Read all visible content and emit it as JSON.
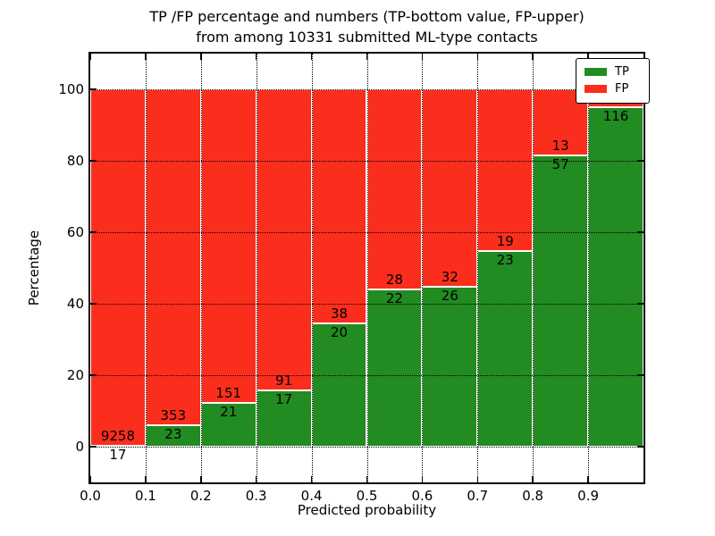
{
  "title": {
    "line1": "TP /FP percentage and numbers (TP-bottom value, FP-upper)",
    "line2": "from among 10331 submitted ML-type contacts"
  },
  "x_axis": {
    "label": "Predicted probability",
    "ticks": [
      "0.0",
      "0.1",
      "0.2",
      "0.3",
      "0.4",
      "0.5",
      "0.6",
      "0.7",
      "0.8",
      "0.9"
    ]
  },
  "y_axis": {
    "label": "Percentage",
    "ticks": [
      "0",
      "20",
      "40",
      "60",
      "80",
      "100"
    ]
  },
  "legend": {
    "items": [
      {
        "label": "TP",
        "color": "#228b22"
      },
      {
        "label": "FP",
        "color": "#fb2e1d"
      }
    ]
  },
  "colors": {
    "tp": "#228b22",
    "fp": "#fb2e1d",
    "bar_edge": "#ffffff",
    "grid": "#000000"
  },
  "chart_data": {
    "type": "bar",
    "stacked": true,
    "title": "TP /FP percentage and numbers (TP-bottom value, FP-upper) from among 10331 submitted ML-type contacts",
    "xlabel": "Predicted probability",
    "ylabel": "Percentage",
    "xlim": [
      0.0,
      1.0
    ],
    "ylim": [
      -10,
      110
    ],
    "grid": true,
    "legend_position": "upper right",
    "total_submitted": 10331,
    "bin_width": 0.1,
    "categories": [
      "0.0-0.1",
      "0.1-0.2",
      "0.2-0.3",
      "0.3-0.4",
      "0.4-0.5",
      "0.5-0.6",
      "0.6-0.7",
      "0.7-0.8",
      "0.8-0.9",
      "0.9-1.0"
    ],
    "series": [
      {
        "name": "TP",
        "color": "#228b22",
        "counts": [
          17,
          23,
          21,
          17,
          20,
          22,
          26,
          23,
          57,
          116
        ],
        "pct": [
          0.2,
          6.1,
          12.2,
          15.7,
          34.5,
          44.0,
          44.8,
          54.8,
          81.4,
          95.1
        ]
      },
      {
        "name": "FP",
        "color": "#fb2e1d",
        "counts": [
          9258,
          353,
          151,
          91,
          38,
          28,
          32,
          19,
          13,
          null
        ],
        "pct": [
          99.8,
          93.9,
          87.8,
          84.3,
          65.5,
          56.0,
          55.2,
          45.2,
          18.6,
          4.9
        ]
      }
    ],
    "bar_labels": [
      {
        "fp": "9258",
        "tp": "17"
      },
      {
        "fp": "353",
        "tp": "23"
      },
      {
        "fp": "151",
        "tp": "21"
      },
      {
        "fp": "91",
        "tp": "17"
      },
      {
        "fp": "38",
        "tp": "20"
      },
      {
        "fp": "28",
        "tp": "22"
      },
      {
        "fp": "32",
        "tp": "26"
      },
      {
        "fp": "19",
        "tp": "23"
      },
      {
        "fp": "13",
        "tp": "57"
      },
      {
        "fp": "",
        "tp": "116"
      }
    ]
  }
}
